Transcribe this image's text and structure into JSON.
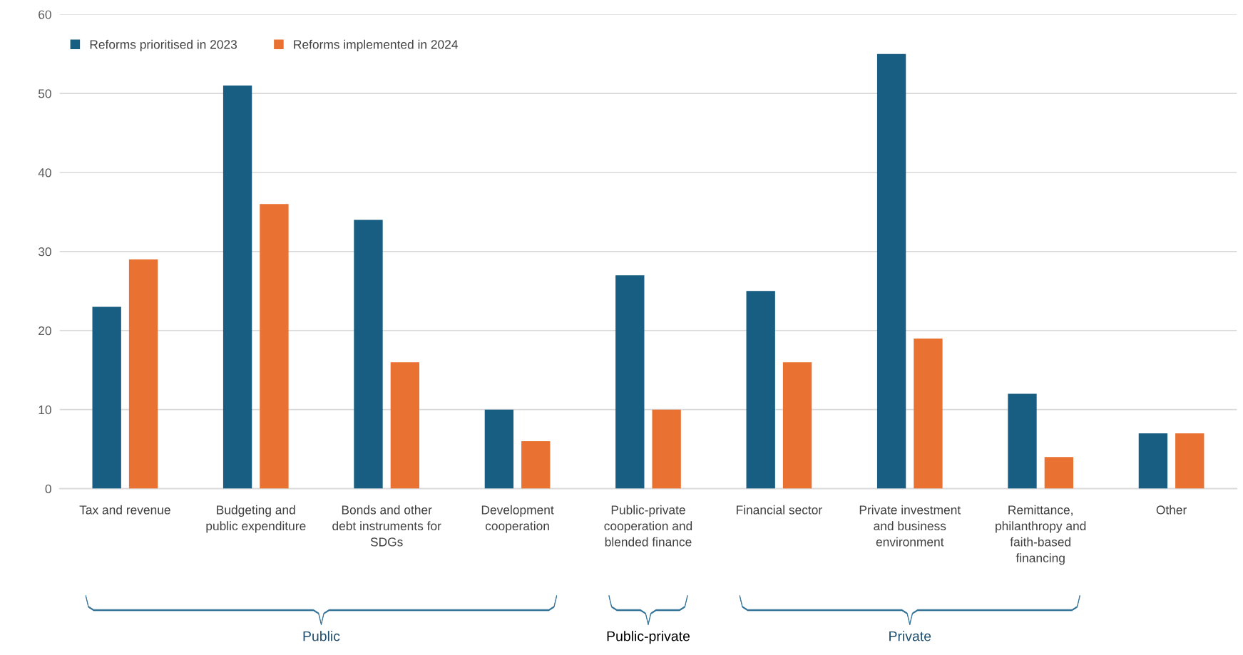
{
  "chart_data": {
    "type": "bar",
    "categories": [
      "Tax and revenue",
      "Budgeting and public expenditure",
      "Bonds and other debt instruments for SDGs",
      "Development cooperation",
      "Public-private cooperation and blended finance",
      "Financial sector",
      "Private investment and business environment",
      "Remittance, philanthropy and faith-based financing",
      "Other"
    ],
    "series": [
      {
        "name": "Reforms prioritised in 2023",
        "color": "#175e82",
        "values": [
          23,
          51,
          34,
          10,
          27,
          25,
          55,
          12,
          7
        ]
      },
      {
        "name": "Reforms implemented in 2024",
        "color": "#e97132",
        "values": [
          29,
          36,
          16,
          6,
          10,
          16,
          19,
          4,
          7
        ]
      }
    ],
    "ylim": [
      0,
      60
    ],
    "yticks": [
      0,
      10,
      20,
      30,
      40,
      50,
      60
    ],
    "grid": "y",
    "legend": "top left",
    "annotations": [
      "Public",
      "Public-private",
      "Private"
    ]
  }
}
